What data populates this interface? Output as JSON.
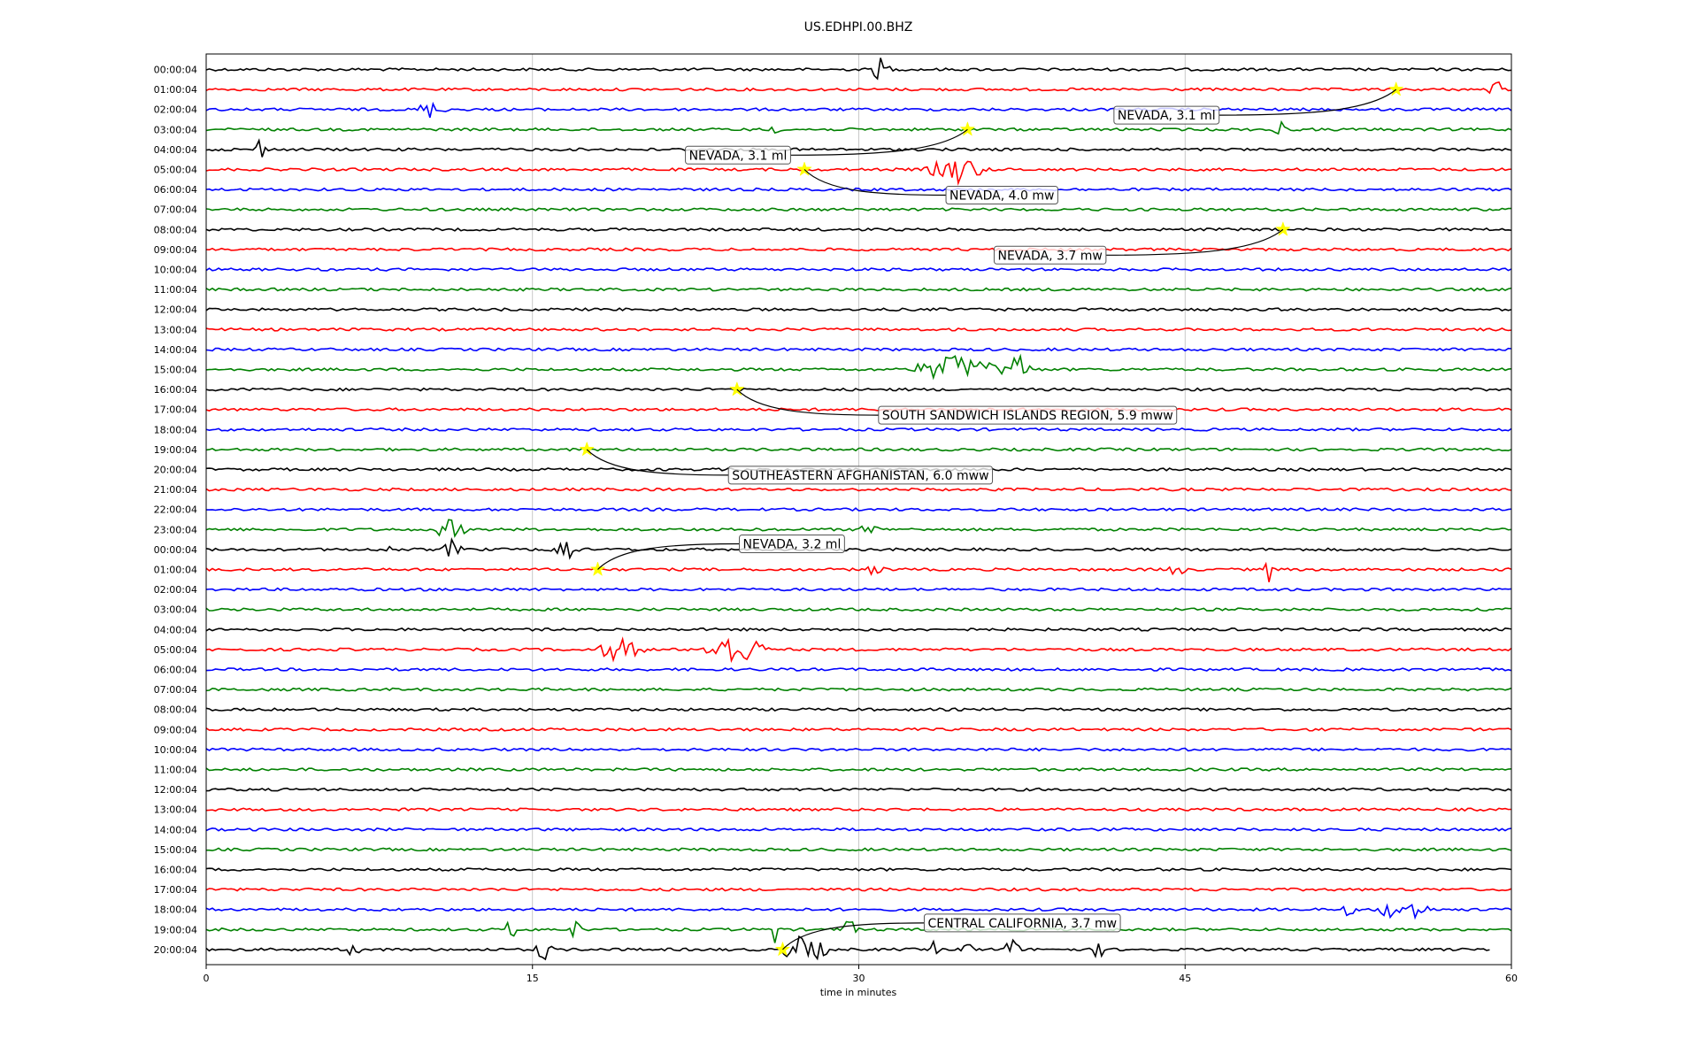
{
  "chart_data": {
    "type": "line",
    "title": "US.EDHPI.00.BHZ",
    "xlabel": "time in minutes",
    "ylabel": "",
    "xlim": [
      0,
      60
    ],
    "x_ticks": [
      0,
      15,
      30,
      45,
      60
    ],
    "grid": "vertical",
    "trace_colors": [
      "#000000",
      "#ff0000",
      "#0000ff",
      "#008000"
    ],
    "rows": [
      "00:00:04",
      "01:00:04",
      "02:00:04",
      "03:00:04",
      "04:00:04",
      "05:00:04",
      "06:00:04",
      "07:00:04",
      "08:00:04",
      "09:00:04",
      "10:00:04",
      "11:00:04",
      "12:00:04",
      "13:00:04",
      "14:00:04",
      "15:00:04",
      "16:00:04",
      "17:00:04",
      "18:00:04",
      "19:00:04",
      "20:00:04",
      "21:00:04",
      "22:00:04",
      "23:00:04",
      "00:00:04",
      "01:00:04",
      "02:00:04",
      "03:00:04",
      "04:00:04",
      "05:00:04",
      "06:00:04",
      "07:00:04",
      "08:00:04",
      "09:00:04",
      "10:00:04",
      "11:00:04",
      "12:00:04",
      "13:00:04",
      "14:00:04",
      "15:00:04",
      "16:00:04",
      "17:00:04",
      "18:00:04",
      "19:00:04",
      "20:00:04"
    ],
    "last_row_end_minute": 59,
    "signals": [
      {
        "row": 0,
        "minute": 31.0,
        "amp": 0.55,
        "width": 0.6
      },
      {
        "row": 1,
        "minute": 59.3,
        "amp": 0.45,
        "width": 0.5
      },
      {
        "row": 2,
        "minute": 10.3,
        "amp": 0.4,
        "width": 0.8
      },
      {
        "row": 3,
        "minute": 26.0,
        "amp": 0.3,
        "width": 0.4
      },
      {
        "row": 3,
        "minute": 49.3,
        "amp": 0.6,
        "width": 0.4
      },
      {
        "row": 4,
        "minute": 2.5,
        "amp": 0.7,
        "width": 0.3
      },
      {
        "row": 5,
        "minute": 34.5,
        "amp": 0.7,
        "width": 1.6
      },
      {
        "row": 15,
        "minute": 34.5,
        "amp": 0.7,
        "width": 2.5
      },
      {
        "row": 15,
        "minute": 37.3,
        "amp": 0.9,
        "width": 0.8
      },
      {
        "row": 23,
        "minute": 11.2,
        "amp": 0.5,
        "width": 0.9
      },
      {
        "row": 23,
        "minute": 30.5,
        "amp": 0.4,
        "width": 0.5
      },
      {
        "row": 24,
        "minute": 8.4,
        "amp": 0.3,
        "width": 0.2
      },
      {
        "row": 24,
        "minute": 11.3,
        "amp": 0.5,
        "width": 0.5
      },
      {
        "row": 24,
        "minute": 16.4,
        "amp": 0.7,
        "width": 0.8
      },
      {
        "row": 25,
        "minute": 30.8,
        "amp": 0.35,
        "width": 0.5
      },
      {
        "row": 25,
        "minute": 44.5,
        "amp": 0.3,
        "width": 0.7
      },
      {
        "row": 25,
        "minute": 48.9,
        "amp": 0.7,
        "width": 0.3
      },
      {
        "row": 29,
        "minute": 19.0,
        "amp": 0.6,
        "width": 1.3
      },
      {
        "row": 29,
        "minute": 24.3,
        "amp": 0.9,
        "width": 1.7
      },
      {
        "row": 42,
        "minute": 52.5,
        "amp": 0.3,
        "width": 0.4
      },
      {
        "row": 42,
        "minute": 54.5,
        "amp": 0.4,
        "width": 1.0
      },
      {
        "row": 42,
        "minute": 55.7,
        "amp": 0.6,
        "width": 0.6
      },
      {
        "row": 43,
        "minute": 14.0,
        "amp": 0.6,
        "width": 0.3
      },
      {
        "row": 43,
        "minute": 17.0,
        "amp": 0.7,
        "width": 0.3
      },
      {
        "row": 43,
        "minute": 26.2,
        "amp": 0.8,
        "width": 0.3
      },
      {
        "row": 43,
        "minute": 29.5,
        "amp": 0.6,
        "width": 0.5
      },
      {
        "row": 44,
        "minute": 6.8,
        "amp": 0.55,
        "width": 0.3
      },
      {
        "row": 44,
        "minute": 15.5,
        "amp": 0.55,
        "width": 0.5
      },
      {
        "row": 44,
        "minute": 27.5,
        "amp": 0.75,
        "width": 1.3
      },
      {
        "row": 44,
        "minute": 33.5,
        "amp": 0.6,
        "width": 0.2
      },
      {
        "row": 44,
        "minute": 35.0,
        "amp": 0.6,
        "width": 0.3
      },
      {
        "row": 44,
        "minute": 37.0,
        "amp": 0.6,
        "width": 0.5
      },
      {
        "row": 44,
        "minute": 41.0,
        "amp": 0.55,
        "width": 0.3
      }
    ],
    "events": [
      {
        "label": "NEVADA, 3.1 ml",
        "row": 1,
        "minute": 54.7
      },
      {
        "label": "NEVADA, 3.1 ml",
        "row": 3,
        "minute": 35.0
      },
      {
        "label": "NEVADA, 4.0 mw",
        "row": 5,
        "minute": 27.5
      },
      {
        "label": "NEVADA, 3.7 mw",
        "row": 8,
        "minute": 49.5
      },
      {
        "label": "SOUTH SANDWICH ISLANDS REGION, 5.9 mww",
        "row": 16,
        "minute": 24.4
      },
      {
        "label": "SOUTHEASTERN AFGHANISTAN, 6.0 mww",
        "row": 19,
        "minute": 17.5
      },
      {
        "label": "NEVADA, 3.2 ml",
        "row": 25,
        "minute": 18.0
      },
      {
        "label": "CENTRAL CALIFORNIA, 3.7 mw",
        "row": 44,
        "minute": 26.5
      }
    ]
  }
}
